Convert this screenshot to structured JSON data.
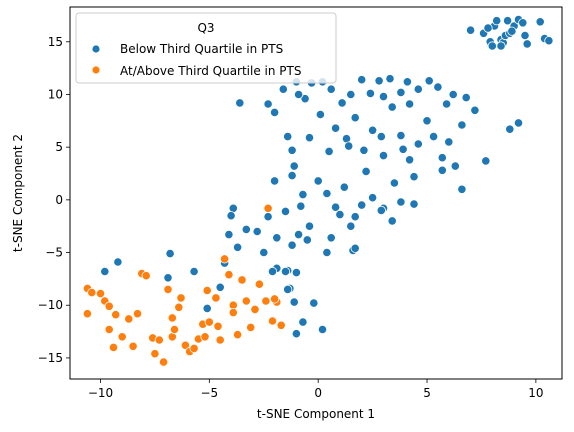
{
  "chart_data": {
    "type": "scatter",
    "xlabel": "t-SNE Component 1",
    "ylabel": "t-SNE Component 2",
    "xlim": [
      -11.4,
      11.2
    ],
    "ylim": [
      -17.0,
      18.3
    ],
    "xticks": [
      -10,
      -5,
      0,
      5,
      10
    ],
    "yticks": [
      -15,
      -10,
      -5,
      0,
      5,
      10,
      15
    ],
    "grid": false,
    "legend": {
      "title": "Q3",
      "placement": "top-left"
    },
    "series": [
      {
        "name": "Below Third Quartile in PTS",
        "color": "#1f77b4",
        "points": [
          [
            7.0,
            16.1
          ],
          [
            7.6,
            15.8
          ],
          [
            7.9,
            15.0
          ],
          [
            8.0,
            14.6
          ],
          [
            8.1,
            16.5
          ],
          [
            8.2,
            17.0
          ],
          [
            8.4,
            15.2
          ],
          [
            8.5,
            14.9
          ],
          [
            8.6,
            15.6
          ],
          [
            8.7,
            17.0
          ],
          [
            8.8,
            15.8
          ],
          [
            9.0,
            16.5
          ],
          [
            9.2,
            17.1
          ],
          [
            9.4,
            16.8
          ],
          [
            9.5,
            15.6
          ],
          [
            9.6,
            14.8
          ],
          [
            10.2,
            16.9
          ],
          [
            10.4,
            15.3
          ],
          [
            10.6,
            15.1
          ],
          [
            8.4,
            14.6
          ],
          [
            7.8,
            16.3
          ],
          [
            8.9,
            16.0
          ],
          [
            -3.6,
            9.2
          ],
          [
            -2.3,
            9.1
          ],
          [
            -1.6,
            10.5
          ],
          [
            -1.0,
            11.2
          ],
          [
            -0.6,
            9.6
          ],
          [
            -0.3,
            11.1
          ],
          [
            0.2,
            11.2
          ],
          [
            0.6,
            10.5
          ],
          [
            1.1,
            9.2
          ],
          [
            1.5,
            10.0
          ],
          [
            2.0,
            11.4
          ],
          [
            2.4,
            10.1
          ],
          [
            2.8,
            11.3
          ],
          [
            3.3,
            11.5
          ],
          [
            3.8,
            10.2
          ],
          [
            4.1,
            11.2
          ],
          [
            4.6,
            10.5
          ],
          [
            5.1,
            11.3
          ],
          [
            5.5,
            10.7
          ],
          [
            5.9,
            9.1
          ],
          [
            6.2,
            10.0
          ],
          [
            6.8,
            9.7
          ],
          [
            7.2,
            8.5
          ],
          [
            4.2,
            9.1
          ],
          [
            3.0,
            9.8
          ],
          [
            -0.9,
            10.0
          ],
          [
            -2.0,
            8.3
          ],
          [
            -1.4,
            6.0
          ],
          [
            -1.2,
            4.7
          ],
          [
            -0.4,
            5.9
          ],
          [
            0.1,
            8.1
          ],
          [
            0.5,
            4.6
          ],
          [
            0.8,
            6.8
          ],
          [
            1.3,
            5.8
          ],
          [
            1.7,
            7.8
          ],
          [
            2.1,
            4.7
          ],
          [
            2.5,
            6.6
          ],
          [
            3.0,
            4.2
          ],
          [
            3.4,
            8.8
          ],
          [
            3.8,
            6.1
          ],
          [
            4.2,
            3.8
          ],
          [
            4.6,
            5.3
          ],
          [
            5.0,
            7.5
          ],
          [
            5.3,
            6.0
          ],
          [
            5.7,
            4.0
          ],
          [
            6.0,
            5.5
          ],
          [
            6.3,
            3.2
          ],
          [
            6.6,
            7.1
          ],
          [
            3.5,
            1.6
          ],
          [
            4.4,
            2.2
          ],
          [
            3.9,
            4.8
          ],
          [
            5.7,
            2.8
          ],
          [
            6.6,
            1.0
          ],
          [
            7.7,
            3.7
          ],
          [
            8.8,
            6.7
          ],
          [
            9.2,
            7.3
          ],
          [
            -1.1,
            3.2
          ],
          [
            1.4,
            5.1
          ],
          [
            2.2,
            2.7
          ],
          [
            2.9,
            6.0
          ],
          [
            -2.0,
            1.8
          ],
          [
            -1.2,
            2.3
          ],
          [
            -0.7,
            0.5
          ],
          [
            0.0,
            1.8
          ],
          [
            0.4,
            0.6
          ],
          [
            0.8,
            -0.7
          ],
          [
            1.2,
            1.2
          ],
          [
            1.7,
            -1.6
          ],
          [
            2.0,
            -0.5
          ],
          [
            2.5,
            0.2
          ],
          [
            3.0,
            -0.8
          ],
          [
            3.4,
            -2.0
          ],
          [
            3.8,
            -0.2
          ],
          [
            4.4,
            -0.4
          ],
          [
            -3.9,
            -0.8
          ],
          [
            -4.0,
            -1.5
          ],
          [
            -3.3,
            -2.8
          ],
          [
            -2.8,
            -3.0
          ],
          [
            -2.3,
            -1.6
          ],
          [
            -1.9,
            -3.6
          ],
          [
            -1.5,
            -1.1
          ],
          [
            -0.9,
            -3.3
          ],
          [
            -0.4,
            -2.5
          ],
          [
            0.6,
            -3.6
          ],
          [
            1.0,
            -1.4
          ],
          [
            1.6,
            -4.8
          ],
          [
            -4.1,
            -3.3
          ],
          [
            -3.7,
            -4.5
          ],
          [
            -2.5,
            -5.0
          ],
          [
            -1.9,
            -6.5
          ],
          [
            -1.2,
            -4.3
          ],
          [
            -0.5,
            -3.8
          ],
          [
            0.4,
            -5.0
          ],
          [
            1.7,
            -4.6
          ],
          [
            -1.4,
            -6.7
          ],
          [
            -0.8,
            -0.6
          ],
          [
            1.5,
            -2.5
          ],
          [
            2.9,
            -1.0
          ],
          [
            -9.2,
            -5.9
          ],
          [
            -9.8,
            -6.8
          ],
          [
            -6.8,
            -5.1
          ],
          [
            -5.7,
            -6.8
          ],
          [
            -5.1,
            -10.3
          ],
          [
            -4.5,
            -8.3
          ],
          [
            -2.1,
            -6.8
          ],
          [
            -1.5,
            -6.8
          ],
          [
            -1.3,
            -8.4
          ],
          [
            -1.0,
            -6.9
          ],
          [
            -1.1,
            -9.7
          ],
          [
            -0.7,
            -11.6
          ],
          [
            -1.0,
            -12.7
          ],
          [
            -0.2,
            -9.8
          ],
          [
            0.2,
            -12.3
          ],
          [
            -1.4,
            -8.5
          ],
          [
            -6.9,
            -7.4
          ],
          [
            -4.3,
            -6.0
          ]
        ]
      },
      {
        "name": "At/Above Third Quartile in PTS",
        "color": "#ff7f0e",
        "points": [
          [
            -10.6,
            -8.4
          ],
          [
            -10.4,
            -8.8
          ],
          [
            -10.0,
            -8.9
          ],
          [
            -9.8,
            -9.6
          ],
          [
            -9.6,
            -10.1
          ],
          [
            -9.3,
            -10.9
          ],
          [
            -9.6,
            -12.3
          ],
          [
            -9.4,
            -14.0
          ],
          [
            -9.0,
            -13.0
          ],
          [
            -8.7,
            -11.3
          ],
          [
            -8.5,
            -13.9
          ],
          [
            -8.1,
            -7.0
          ],
          [
            -7.9,
            -7.2
          ],
          [
            -7.6,
            -13.1
          ],
          [
            -7.5,
            -14.6
          ],
          [
            -7.3,
            -13.3
          ],
          [
            -7.1,
            -15.4
          ],
          [
            -6.9,
            -8.5
          ],
          [
            -6.7,
            -11.2
          ],
          [
            -6.7,
            -13.0
          ],
          [
            -6.6,
            -12.3
          ],
          [
            -6.4,
            -10.2
          ],
          [
            -6.1,
            -13.8
          ],
          [
            -5.9,
            -14.4
          ],
          [
            -5.7,
            -14.1
          ],
          [
            -5.5,
            -13.2
          ],
          [
            -5.3,
            -11.8
          ],
          [
            -5.1,
            -8.6
          ],
          [
            -5.0,
            -11.6
          ],
          [
            -4.7,
            -9.3
          ],
          [
            -4.6,
            -12.0
          ],
          [
            -4.5,
            -13.3
          ],
          [
            -4.3,
            -5.6
          ],
          [
            -4.1,
            -7.1
          ],
          [
            -3.9,
            -10.0
          ],
          [
            -3.7,
            -12.8
          ],
          [
            -3.5,
            -7.6
          ],
          [
            -3.3,
            -9.6
          ],
          [
            -3.1,
            -12.1
          ],
          [
            -2.9,
            -10.4
          ],
          [
            -2.7,
            -8.0
          ],
          [
            -2.4,
            -9.6
          ],
          [
            -2.1,
            -11.5
          ],
          [
            -1.9,
            -9.7
          ],
          [
            -1.7,
            -11.9
          ],
          [
            -2.3,
            -0.8
          ],
          [
            -10.6,
            -10.8
          ],
          [
            -8.3,
            -10.8
          ],
          [
            -6.3,
            -9.3
          ],
          [
            -2.0,
            -9.4
          ],
          [
            -5.2,
            -13.0
          ],
          [
            -3.9,
            -10.7
          ]
        ]
      }
    ]
  }
}
